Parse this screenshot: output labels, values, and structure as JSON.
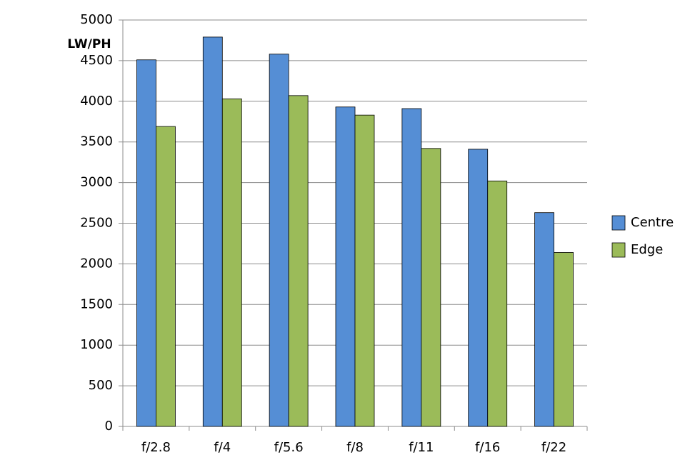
{
  "chart_data": {
    "type": "bar",
    "y_label": "LW/PH",
    "categories": [
      "f/2.8",
      "f/4",
      "f/5.6",
      "f/8",
      "f/11",
      "f/16",
      "f/22"
    ],
    "series": [
      {
        "name": "Centre",
        "color": "#558ed5",
        "values": [
          4510,
          4790,
          4580,
          3930,
          3910,
          3410,
          2630
        ]
      },
      {
        "name": "Edge",
        "color": "#9bbb59",
        "values": [
          3690,
          4030,
          4070,
          3830,
          3420,
          3020,
          2140
        ]
      }
    ],
    "ylim": [
      0,
      5000
    ],
    "yticks": [
      0,
      500,
      1000,
      1500,
      2000,
      2500,
      3000,
      3500,
      4000,
      4500,
      5000
    ],
    "grid": true,
    "legend": "right"
  }
}
